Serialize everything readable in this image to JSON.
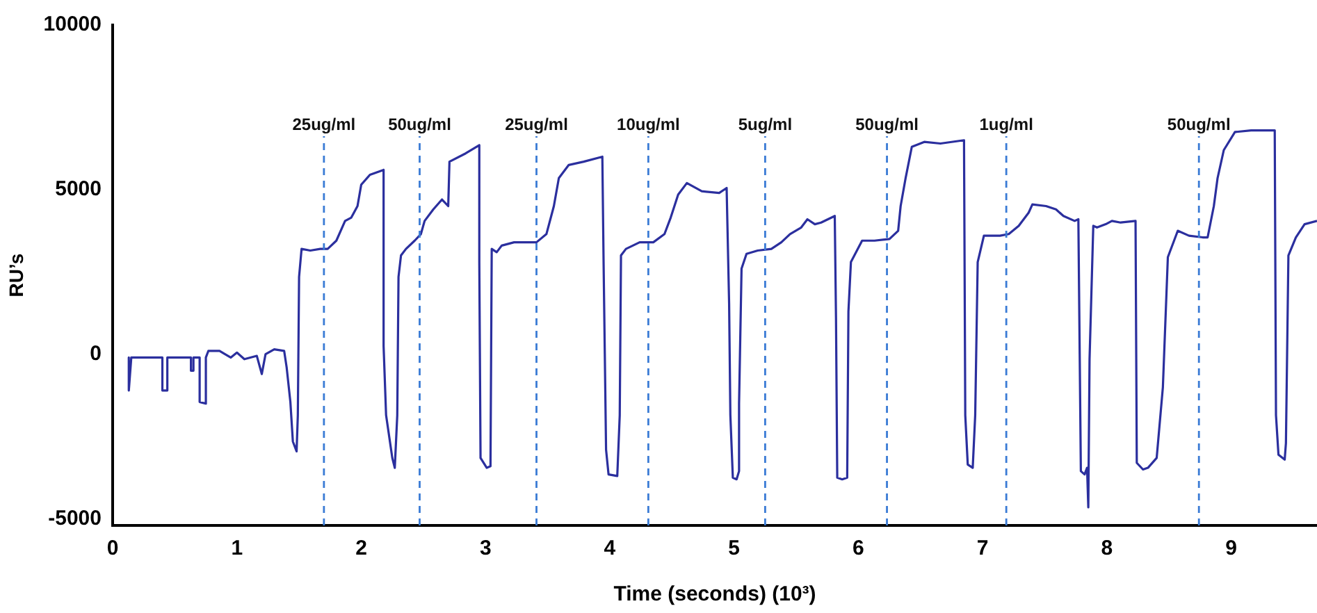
{
  "chart_data": {
    "type": "line",
    "xlabel": "Time (seconds) (10³)",
    "ylabel": "RU’s",
    "xlim": [
      0,
      9.69
    ],
    "xticks": [
      0,
      1,
      2,
      3,
      4,
      5,
      6,
      7,
      8,
      9
    ],
    "ylim": [
      -5200,
      10000
    ],
    "yticks": [
      -5000,
      0,
      5000,
      10000
    ],
    "grid": false,
    "legend": false,
    "marker": "none",
    "line_style": "solid",
    "series": [
      {
        "color": "#2b2f9e",
        "x": [
          0.13,
          0.13,
          0.15,
          0.4,
          0.4,
          0.44,
          0.44,
          0.63,
          0.63,
          0.65,
          0.65,
          0.7,
          0.7,
          0.75,
          0.75,
          0.77,
          0.86,
          0.95,
          1.0,
          1.06,
          1.16,
          1.2,
          1.23,
          1.3,
          1.38,
          1.4,
          1.43,
          1.45,
          1.48,
          1.49,
          1.5,
          1.52,
          1.59,
          1.67,
          1.73,
          1.8,
          1.87,
          1.92,
          1.97,
          2.0,
          2.07,
          2.18,
          2.18,
          2.2,
          2.25,
          2.27,
          2.29,
          2.3,
          2.32,
          2.36,
          2.43,
          2.48,
          2.51,
          2.58,
          2.65,
          2.7,
          2.71,
          2.84,
          2.95,
          2.95,
          2.96,
          3.01,
          3.04,
          3.05,
          3.09,
          3.13,
          3.23,
          3.41,
          3.49,
          3.55,
          3.59,
          3.67,
          3.79,
          3.94,
          3.95,
          3.97,
          3.99,
          4.06,
          4.08,
          4.09,
          4.13,
          4.24,
          4.35,
          4.44,
          4.49,
          4.55,
          4.62,
          4.74,
          4.88,
          4.94,
          4.96,
          4.97,
          4.99,
          5.02,
          5.04,
          5.04,
          5.06,
          5.1,
          5.19,
          5.3,
          5.38,
          5.45,
          5.54,
          5.59,
          5.65,
          5.7,
          5.81,
          5.82,
          5.83,
          5.87,
          5.91,
          5.92,
          5.94,
          6.03,
          6.13,
          6.25,
          6.32,
          6.34,
          6.38,
          6.43,
          6.53,
          6.66,
          6.85,
          6.86,
          6.88,
          6.92,
          6.94,
          6.96,
          7.01,
          7.14,
          7.21,
          7.29,
          7.37,
          7.4,
          7.51,
          7.59,
          7.65,
          7.74,
          7.77,
          7.79,
          7.82,
          7.84,
          7.85,
          7.86,
          7.89,
          7.92,
          7.99,
          8.04,
          8.11,
          8.23,
          8.24,
          8.29,
          8.33,
          8.4,
          8.45,
          8.49,
          8.57,
          8.66,
          8.77,
          8.81,
          8.86,
          8.89,
          8.94,
          9.03,
          9.16,
          9.32,
          9.35,
          9.36,
          9.38,
          9.43,
          9.44,
          9.46,
          9.52,
          9.59,
          9.69
        ],
        "values": [
          -100,
          -1100,
          -100,
          -100,
          -1100,
          -1100,
          -100,
          -100,
          -500,
          -500,
          -100,
          -100,
          -1450,
          -1500,
          -100,
          100,
          100,
          -100,
          50,
          -150,
          -50,
          -600,
          0,
          150,
          100,
          -400,
          -1450,
          -2650,
          -2950,
          -1850,
          2350,
          3200,
          3150,
          3200,
          3200,
          3450,
          4050,
          4150,
          4500,
          5150,
          5450,
          5600,
          250,
          -1850,
          -3150,
          -3450,
          -1850,
          2350,
          3000,
          3200,
          3450,
          3650,
          4050,
          4400,
          4700,
          4500,
          5850,
          6100,
          6350,
          2800,
          -3150,
          -3450,
          -3400,
          3200,
          3100,
          3300,
          3400,
          3400,
          3650,
          4500,
          5350,
          5750,
          5850,
          6000,
          2800,
          -2900,
          -3650,
          -3700,
          -1850,
          3000,
          3200,
          3400,
          3400,
          3650,
          4150,
          4850,
          5200,
          4950,
          4900,
          5050,
          1550,
          -1850,
          -3750,
          -3800,
          -3550,
          -1500,
          2600,
          3050,
          3150,
          3200,
          3400,
          3650,
          3850,
          4100,
          3950,
          4000,
          4200,
          1100,
          -3750,
          -3800,
          -3750,
          1300,
          2800,
          3450,
          3450,
          3500,
          3750,
          4500,
          5350,
          6300,
          6450,
          6400,
          6500,
          -1850,
          -3350,
          -3450,
          -1850,
          2800,
          3600,
          3600,
          3650,
          3900,
          4300,
          4550,
          4500,
          4400,
          4200,
          4050,
          4100,
          -3550,
          -3650,
          -3450,
          -4650,
          -150,
          3900,
          3850,
          3950,
          4050,
          4000,
          4050,
          -3300,
          -3500,
          -3450,
          -3150,
          -1000,
          2950,
          3750,
          3600,
          3550,
          3550,
          4500,
          5350,
          6200,
          6750,
          6800,
          6800,
          6800,
          -1850,
          -3050,
          -3200,
          -2700,
          3000,
          3550,
          3950,
          4050
        ]
      }
    ],
    "ref_lines": [
      {
        "axis": "x",
        "value": 1.7,
        "label": "25ug/ml",
        "color": "#3a7bd5",
        "line_style": "dashed"
      },
      {
        "axis": "x",
        "value": 2.47,
        "label": "50ug/ml",
        "color": "#3a7bd5",
        "line_style": "dashed"
      },
      {
        "axis": "x",
        "value": 3.41,
        "label": "25ug/ml",
        "color": "#3a7bd5",
        "line_style": "dashed"
      },
      {
        "axis": "x",
        "value": 4.31,
        "label": "10ug/ml",
        "color": "#3a7bd5",
        "line_style": "dashed"
      },
      {
        "axis": "x",
        "value": 5.25,
        "label": "5ug/ml",
        "color": "#3a7bd5",
        "line_style": "dashed"
      },
      {
        "axis": "x",
        "value": 6.23,
        "label": "50ug/ml",
        "color": "#3a7bd5",
        "line_style": "dashed"
      },
      {
        "axis": "x",
        "value": 7.19,
        "label": "1ug/ml",
        "color": "#3a7bd5",
        "line_style": "dashed"
      },
      {
        "axis": "x",
        "value": 8.74,
        "label": "50ug/ml",
        "color": "#3a7bd5",
        "line_style": "dashed"
      }
    ]
  }
}
